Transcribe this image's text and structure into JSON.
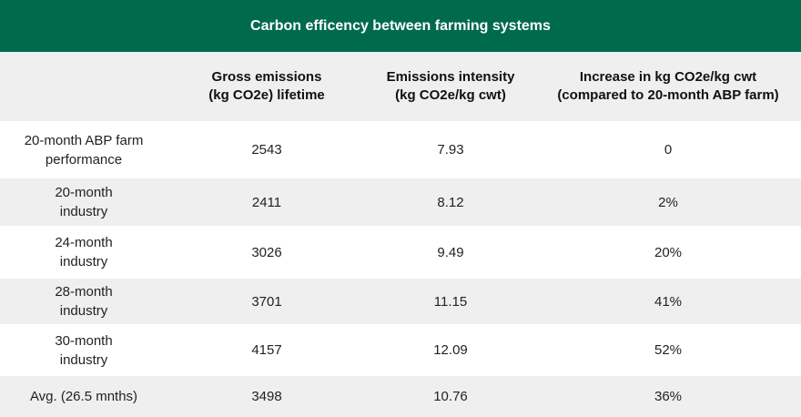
{
  "title": "Carbon efficency between farming systems",
  "columns": [
    {
      "line1": "",
      "line2": ""
    },
    {
      "line1": "Gross emissions",
      "line2": "(kg CO2e) lifetime"
    },
    {
      "line1": "Emissions intensity",
      "line2": "(kg CO2e/kg cwt)"
    },
    {
      "line1": "Increase in kg CO2e/kg cwt",
      "line2": "(compared to 20-month ABP farm)"
    }
  ],
  "rows": [
    {
      "label1": "20-month ABP farm",
      "label2": "performance",
      "gross": "2543",
      "intensity": "7.93",
      "increase": "0"
    },
    {
      "label1": "20-month",
      "label2": "industry",
      "gross": "2411",
      "intensity": "8.12",
      "increase": "2%"
    },
    {
      "label1": "24-month",
      "label2": "industry",
      "gross": "3026",
      "intensity": "9.49",
      "increase": "20%"
    },
    {
      "label1": "28-month",
      "label2": "industry",
      "gross": "3701",
      "intensity": "11.15",
      "increase": "41%"
    },
    {
      "label1": "30-month",
      "label2": "industry",
      "gross": "4157",
      "intensity": "12.09",
      "increase": "52%"
    },
    {
      "label1": "Avg. (26.5 mnths)",
      "label2": "",
      "gross": "3498",
      "intensity": "10.76",
      "increase": "36%"
    }
  ],
  "colors": {
    "header_bg": "#006a4e",
    "stripe_bg": "#efefef"
  }
}
